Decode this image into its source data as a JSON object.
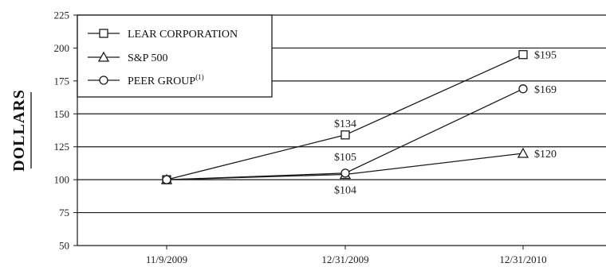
{
  "chart_data": {
    "type": "line",
    "categories": [
      "11/9/2009",
      "12/31/2009",
      "12/31/2010"
    ],
    "series": [
      {
        "name": "LEAR CORPORATION",
        "values": [
          100,
          134,
          195
        ],
        "marker": "square",
        "labels": [
          "",
          "$134",
          "$195"
        ]
      },
      {
        "name": "S&P 500",
        "values": [
          100,
          104,
          120
        ],
        "marker": "triangle",
        "labels": [
          "",
          "$104",
          "$120"
        ]
      },
      {
        "name": "PEER GROUP",
        "name_superscript": "(1)",
        "values": [
          100,
          105,
          169
        ],
        "marker": "circle",
        "labels": [
          "",
          "$105",
          "$169"
        ]
      }
    ],
    "ylabel": "DOLLARS",
    "xlabel": "",
    "title": "",
    "ylim": [
      50,
      225
    ],
    "yticks": [
      50,
      75,
      100,
      125,
      150,
      175,
      200,
      225
    ],
    "grid": true,
    "legend_position": "top-left",
    "colors": {
      "line": "#1a1a1a",
      "grid": "#1a1a1a",
      "marker_fill": "#ffffff"
    }
  }
}
